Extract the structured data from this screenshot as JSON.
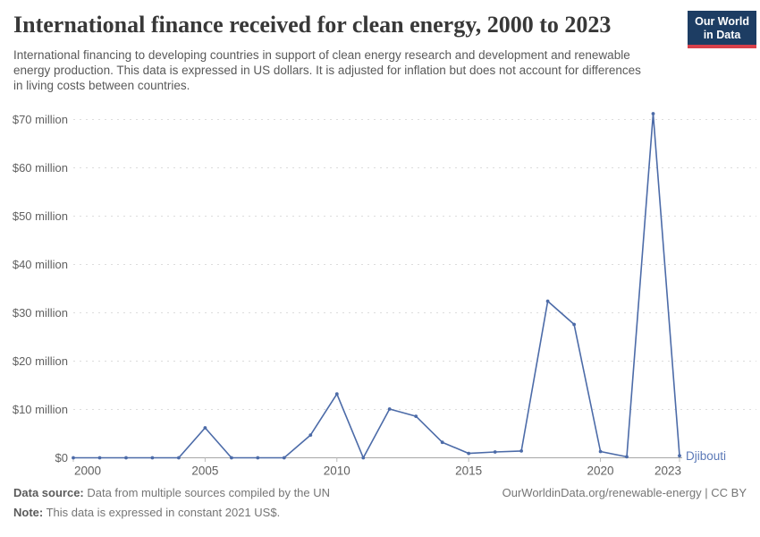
{
  "header": {
    "title": "International finance received for clean energy, 2000 to 2023",
    "subtitle": "International financing to developing countries in support of clean energy research and development and renewable energy production. This data is expressed in US dollars. It is adjusted for inflation but does not account for differences in living costs between countries.",
    "logo": {
      "line1": "Our World",
      "line2": "in Data"
    }
  },
  "chart_data": {
    "type": "line",
    "title": "International finance received for clean energy, 2000 to 2023",
    "unit": "constant 2021 US$ (millions)",
    "x": [
      2000,
      2001,
      2002,
      2003,
      2004,
      2005,
      2006,
      2007,
      2008,
      2009,
      2010,
      2011,
      2012,
      2013,
      2014,
      2015,
      2016,
      2017,
      2018,
      2019,
      2020,
      2021,
      2022,
      2023
    ],
    "series": [
      {
        "name": "Djibouti",
        "values": [
          0,
          0,
          0,
          0,
          0,
          6.2,
          0,
          0,
          0,
          4.7,
          13.2,
          0,
          10.1,
          8.6,
          3.2,
          0.9,
          1.2,
          1.4,
          32.4,
          27.6,
          1.3,
          0.2,
          71.2,
          0.4
        ]
      }
    ],
    "x_ticks": [
      2000,
      2005,
      2010,
      2015,
      2020,
      2023
    ],
    "y_ticks": [
      {
        "value": 0,
        "label": "$0"
      },
      {
        "value": 10,
        "label": "$10 million"
      },
      {
        "value": 20,
        "label": "$20 million"
      },
      {
        "value": 30,
        "label": "$30 million"
      },
      {
        "value": 40,
        "label": "$40 million"
      },
      {
        "value": 50,
        "label": "$50 million"
      },
      {
        "value": 60,
        "label": "$60 million"
      },
      {
        "value": 70,
        "label": "$70 million"
      }
    ],
    "xlim": [
      2000,
      2023
    ],
    "ylim": [
      0,
      70
    ],
    "grid": "horizontal-dashed",
    "legend": "end-of-line-label",
    "end_label": "Djibouti"
  },
  "footer": {
    "source_label": "Data source:",
    "source_text": " Data from multiple sources compiled by the UN",
    "note_label": "Note:",
    "note_text": " This data is expressed in constant 2021 US$.",
    "credit": "OurWorldinData.org/renewable-energy | CC BY"
  },
  "colors": {
    "line": "#4c6ba8",
    "entity_label": "#5b79b7",
    "grid": "#dcdcdc",
    "axis": "#a6a6a6",
    "tick_text": "#616161",
    "logo_bg": "#1d3d63",
    "logo_accent": "#d8404a"
  }
}
